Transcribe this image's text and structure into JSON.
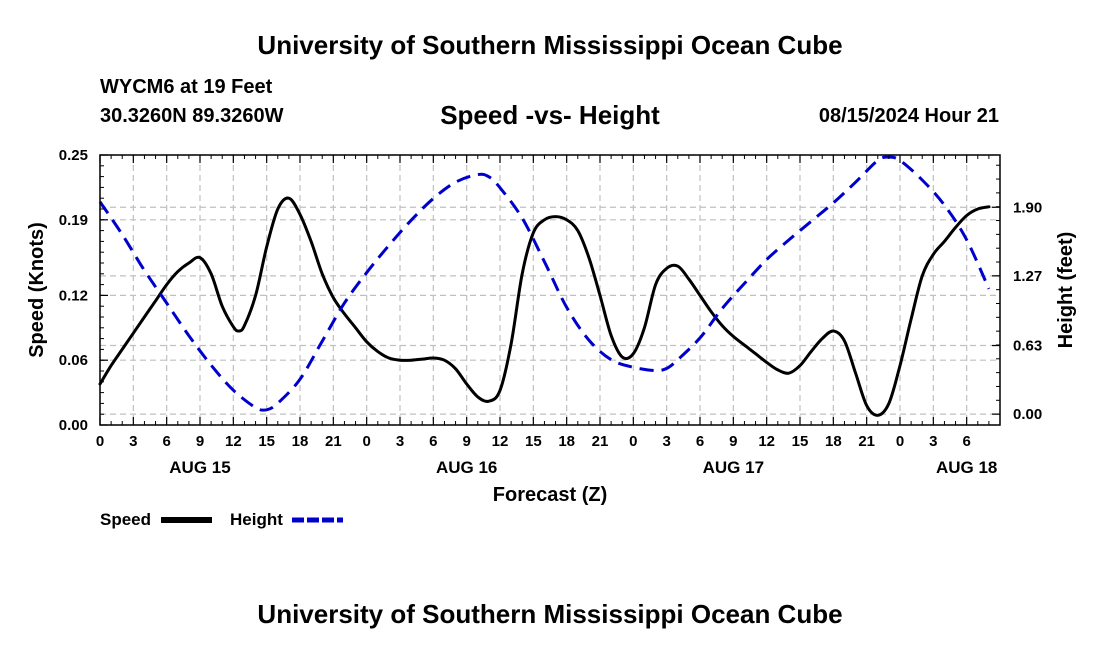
{
  "header": {
    "title": "University of Southern Mississippi Ocean Cube",
    "station": "WYCM6 at 19 Feet",
    "coordinates": "30.3260N  89.3260W",
    "subtitle": "Speed -vs- Height",
    "datetime": "08/15/2024 Hour 21",
    "footer_title": "University of Southern Mississippi Ocean Cube"
  },
  "chart_data": {
    "type": "line",
    "title": "Speed -vs- Height",
    "xlabel": "Forecast (Z)",
    "ylabel": "Speed (Knots)",
    "y2label": "Height (feet)",
    "grid": true,
    "legend_position": "bottom-left",
    "x_range_hours": [
      0,
      81
    ],
    "x_note": "hours after 08/15/2024 00Z",
    "x_ticks": [
      {
        "h": 0,
        "label": "0"
      },
      {
        "h": 3,
        "label": "3"
      },
      {
        "h": 6,
        "label": "6"
      },
      {
        "h": 9,
        "label": "9"
      },
      {
        "h": 12,
        "label": "12"
      },
      {
        "h": 15,
        "label": "15"
      },
      {
        "h": 18,
        "label": "18"
      },
      {
        "h": 21,
        "label": "21"
      },
      {
        "h": 24,
        "label": "0"
      },
      {
        "h": 27,
        "label": "3"
      },
      {
        "h": 30,
        "label": "6"
      },
      {
        "h": 33,
        "label": "9"
      },
      {
        "h": 36,
        "label": "12"
      },
      {
        "h": 39,
        "label": "15"
      },
      {
        "h": 42,
        "label": "18"
      },
      {
        "h": 45,
        "label": "21"
      },
      {
        "h": 48,
        "label": "0"
      },
      {
        "h": 51,
        "label": "3"
      },
      {
        "h": 54,
        "label": "6"
      },
      {
        "h": 57,
        "label": "9"
      },
      {
        "h": 60,
        "label": "12"
      },
      {
        "h": 63,
        "label": "15"
      },
      {
        "h": 66,
        "label": "18"
      },
      {
        "h": 69,
        "label": "21"
      },
      {
        "h": 72,
        "label": "0"
      },
      {
        "h": 75,
        "label": "3"
      },
      {
        "h": 78,
        "label": "6"
      }
    ],
    "day_labels": [
      {
        "h": 9,
        "label": "AUG 15"
      },
      {
        "h": 33,
        "label": "AUG 16"
      },
      {
        "h": 57,
        "label": "AUG 17"
      },
      {
        "h": 78,
        "label": "AUG 18"
      }
    ],
    "y_left": {
      "range": [
        0,
        0.25
      ],
      "ticks": [
        0.0,
        0.06,
        0.12,
        0.19,
        0.25
      ],
      "tick_labels": [
        "0.00",
        "0.06",
        "0.12",
        "0.19",
        "0.25"
      ]
    },
    "y_right": {
      "range": [
        -0.1,
        2.38
      ],
      "ticks": [
        0.0,
        0.63,
        1.27,
        1.9
      ],
      "tick_labels": [
        "0.00",
        "0.63",
        "1.27",
        "1.90"
      ]
    },
    "series": [
      {
        "name": "Speed",
        "axis": "left",
        "color": "#000000",
        "dash": "solid",
        "points": [
          [
            0,
            0.038
          ],
          [
            1,
            0.055
          ],
          [
            2,
            0.07
          ],
          [
            3,
            0.085
          ],
          [
            4,
            0.1
          ],
          [
            5,
            0.115
          ],
          [
            6,
            0.13
          ],
          [
            7,
            0.142
          ],
          [
            8,
            0.15
          ],
          [
            9,
            0.155
          ],
          [
            10,
            0.14
          ],
          [
            11,
            0.11
          ],
          [
            12,
            0.091
          ],
          [
            12.5,
            0.087
          ],
          [
            13,
            0.092
          ],
          [
            14,
            0.12
          ],
          [
            15,
            0.165
          ],
          [
            16,
            0.2
          ],
          [
            17,
            0.21
          ],
          [
            18,
            0.195
          ],
          [
            19,
            0.17
          ],
          [
            20,
            0.14
          ],
          [
            21,
            0.118
          ],
          [
            22,
            0.103
          ],
          [
            23,
            0.09
          ],
          [
            24,
            0.077
          ],
          [
            25,
            0.068
          ],
          [
            26,
            0.062
          ],
          [
            27,
            0.06
          ],
          [
            28,
            0.06
          ],
          [
            29,
            0.061
          ],
          [
            30,
            0.062
          ],
          [
            31,
            0.06
          ],
          [
            32,
            0.052
          ],
          [
            33,
            0.038
          ],
          [
            34,
            0.026
          ],
          [
            35,
            0.022
          ],
          [
            36,
            0.032
          ],
          [
            37,
            0.075
          ],
          [
            38,
            0.14
          ],
          [
            39,
            0.178
          ],
          [
            40,
            0.19
          ],
          [
            41,
            0.193
          ],
          [
            42,
            0.19
          ],
          [
            43,
            0.18
          ],
          [
            44,
            0.155
          ],
          [
            45,
            0.12
          ],
          [
            46,
            0.083
          ],
          [
            47,
            0.063
          ],
          [
            48,
            0.066
          ],
          [
            49,
            0.09
          ],
          [
            50,
            0.13
          ],
          [
            51,
            0.145
          ],
          [
            52,
            0.147
          ],
          [
            53,
            0.135
          ],
          [
            54,
            0.12
          ],
          [
            55,
            0.105
          ],
          [
            56,
            0.092
          ],
          [
            57,
            0.082
          ],
          [
            58,
            0.074
          ],
          [
            59,
            0.066
          ],
          [
            60,
            0.058
          ],
          [
            61,
            0.051
          ],
          [
            62,
            0.048
          ],
          [
            63,
            0.055
          ],
          [
            64,
            0.068
          ],
          [
            65,
            0.08
          ],
          [
            66,
            0.087
          ],
          [
            67,
            0.078
          ],
          [
            68,
            0.048
          ],
          [
            69,
            0.018
          ],
          [
            70,
            0.009
          ],
          [
            71,
            0.02
          ],
          [
            72,
            0.055
          ],
          [
            73,
            0.098
          ],
          [
            74,
            0.138
          ],
          [
            75,
            0.158
          ],
          [
            76,
            0.17
          ],
          [
            77,
            0.183
          ],
          [
            78,
            0.194
          ],
          [
            79,
            0.2
          ],
          [
            80,
            0.202
          ]
        ]
      },
      {
        "name": "Height",
        "axis": "right",
        "color": "#0000cc",
        "dash": "dashed",
        "points": [
          [
            0,
            1.95
          ],
          [
            2,
            1.65
          ],
          [
            4,
            1.32
          ],
          [
            6,
            1.02
          ],
          [
            8,
            0.72
          ],
          [
            10,
            0.45
          ],
          [
            12,
            0.22
          ],
          [
            14,
            0.06
          ],
          [
            15,
            0.04
          ],
          [
            16,
            0.1
          ],
          [
            18,
            0.32
          ],
          [
            20,
            0.67
          ],
          [
            22,
            1.02
          ],
          [
            24,
            1.3
          ],
          [
            26,
            1.55
          ],
          [
            28,
            1.78
          ],
          [
            30,
            1.98
          ],
          [
            32,
            2.13
          ],
          [
            34,
            2.2
          ],
          [
            35,
            2.18
          ],
          [
            36,
            2.08
          ],
          [
            38,
            1.8
          ],
          [
            40,
            1.4
          ],
          [
            42,
            0.98
          ],
          [
            44,
            0.68
          ],
          [
            46,
            0.5
          ],
          [
            48,
            0.43
          ],
          [
            50,
            0.4
          ],
          [
            51,
            0.42
          ],
          [
            52,
            0.5
          ],
          [
            54,
            0.7
          ],
          [
            56,
            0.97
          ],
          [
            58,
            1.2
          ],
          [
            60,
            1.42
          ],
          [
            62,
            1.6
          ],
          [
            64,
            1.77
          ],
          [
            66,
            1.94
          ],
          [
            68,
            2.13
          ],
          [
            70,
            2.33
          ],
          [
            71,
            2.36
          ],
          [
            72,
            2.33
          ],
          [
            74,
            2.15
          ],
          [
            76,
            1.92
          ],
          [
            78,
            1.6
          ],
          [
            80,
            1.15
          ]
        ]
      }
    ]
  }
}
